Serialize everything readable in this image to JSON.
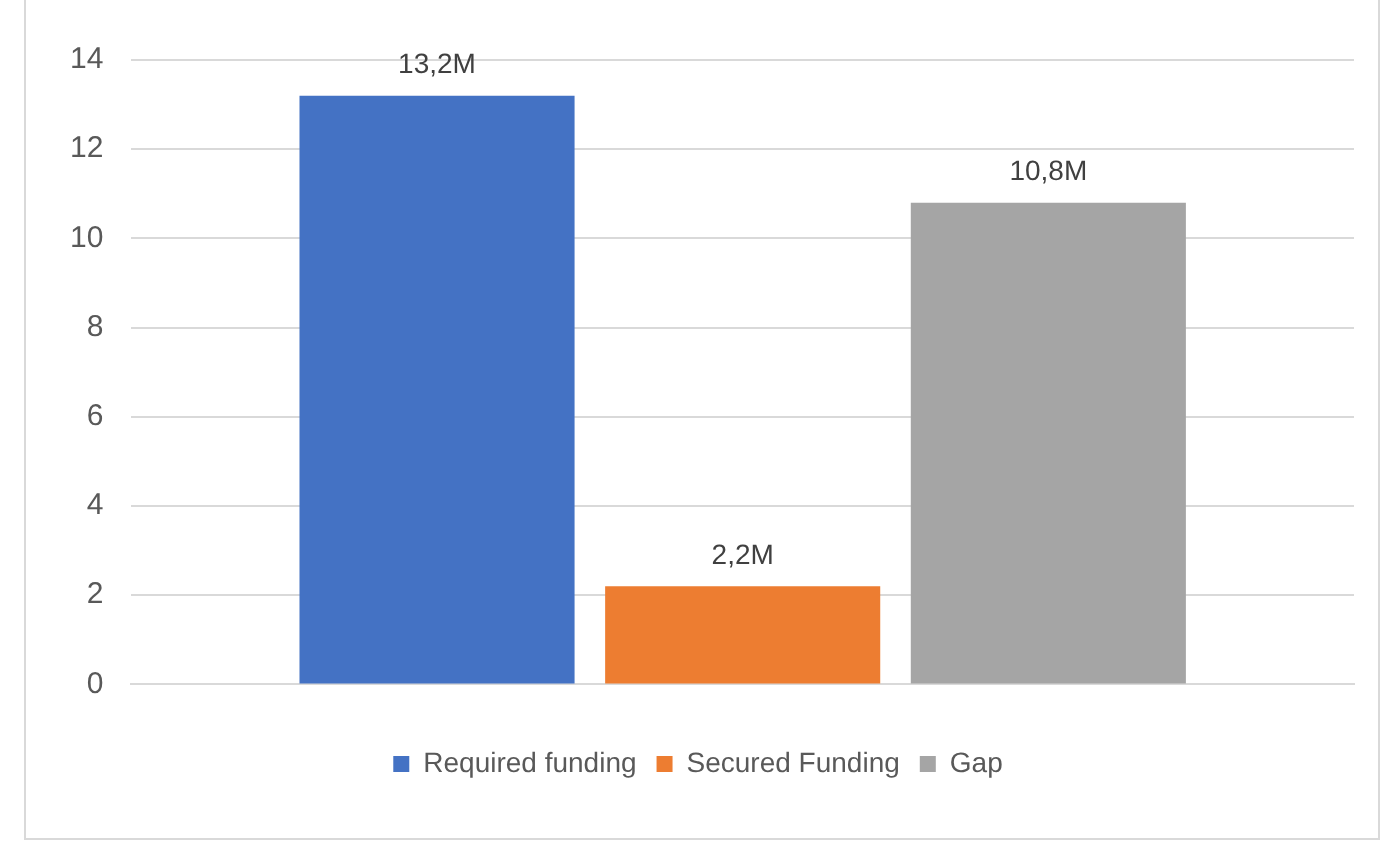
{
  "chart_data": {
    "type": "bar",
    "categories": [
      null
    ],
    "series": [
      {
        "name": "Required funding",
        "color": "#4472c4",
        "values": [
          13.2
        ],
        "value_labels": [
          "13,2M"
        ]
      },
      {
        "name": "Secured Funding",
        "color": "#ed7d31",
        "values": [
          2.2
        ],
        "value_labels": [
          "2,2M"
        ]
      },
      {
        "name": "Gap",
        "color": "#a5a5a5",
        "values": [
          10.8
        ],
        "value_labels": [
          "10,8M"
        ]
      }
    ],
    "ylim": [
      0,
      14
    ],
    "yticks": [
      0,
      2,
      4,
      6,
      8,
      10,
      12,
      14
    ],
    "grid": "y",
    "legend": "bottom"
  }
}
